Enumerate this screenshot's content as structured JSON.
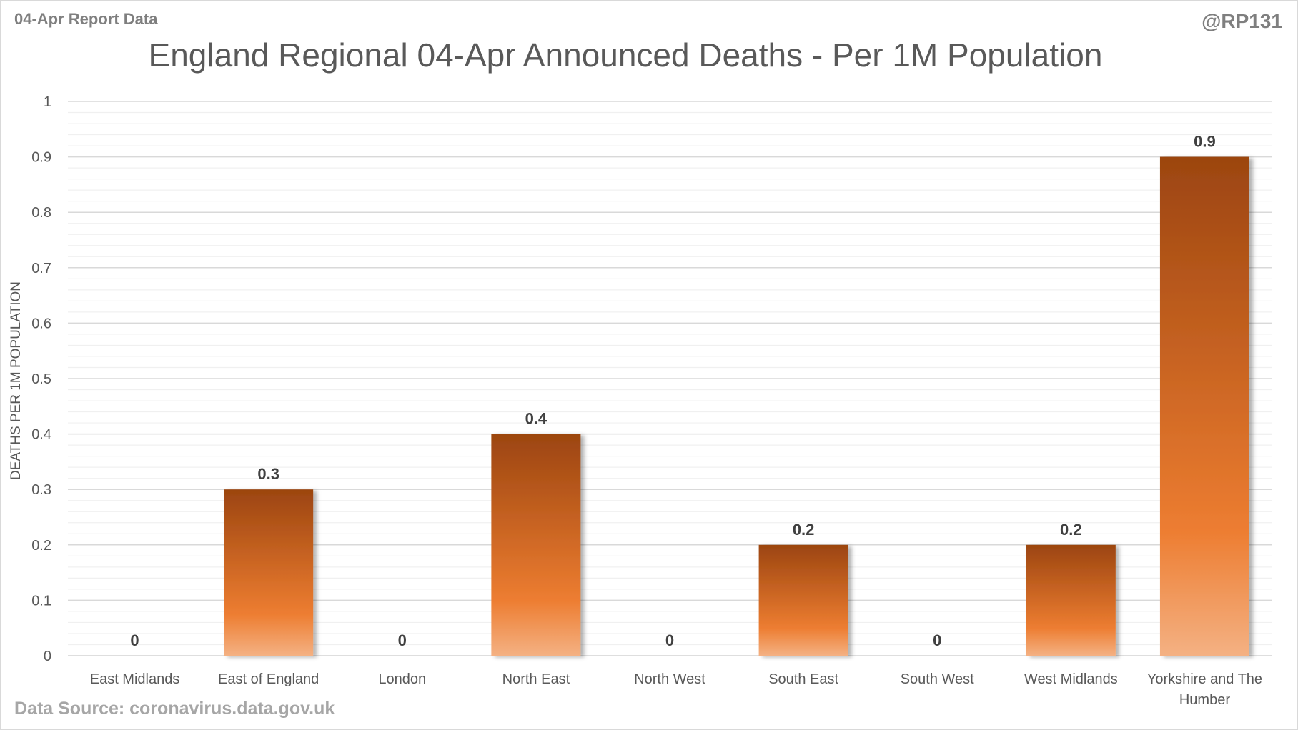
{
  "header": {
    "report_label": "04-Apr Report Data",
    "handle": "@RP131"
  },
  "footer": {
    "source": "Data Source: coronavirus.data.gov.uk"
  },
  "colors": {
    "bar_top": "#9c4510",
    "bar_mid": "#ed7d31",
    "bar_bottom": "#f4b183"
  },
  "chart_data": {
    "type": "bar",
    "title": "England Regional 04-Apr Announced Deaths - Per 1M Population",
    "xlabel": "",
    "ylabel": "DEATHS PER 1M POPULATION",
    "ylim": [
      0,
      1
    ],
    "yticks": [
      "0",
      "0.1",
      "0.2",
      "0.3",
      "0.4",
      "0.5",
      "0.6",
      "0.7",
      "0.8",
      "0.9",
      "1"
    ],
    "grid": true,
    "categories": [
      [
        "East Midlands"
      ],
      [
        "East of England"
      ],
      [
        "London"
      ],
      [
        "North East"
      ],
      [
        "North West"
      ],
      [
        "South East"
      ],
      [
        "South West"
      ],
      [
        "West Midlands"
      ],
      [
        "Yorkshire and The",
        "Humber"
      ]
    ],
    "values": [
      0,
      0.3,
      0,
      0.4,
      0,
      0.2,
      0,
      0.2,
      0.9
    ],
    "data_labels": [
      "0",
      "0.3",
      "0",
      "0.4",
      "0",
      "0.2",
      "0",
      "0.2",
      "0.9"
    ]
  }
}
